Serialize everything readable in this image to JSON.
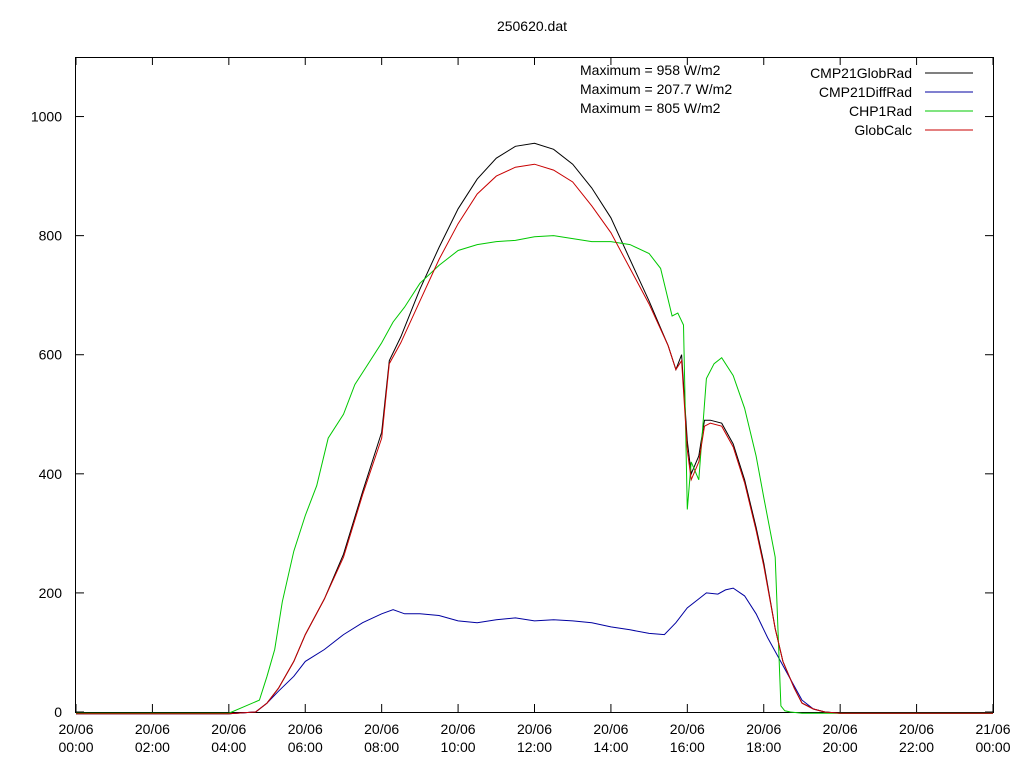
{
  "chart_data": {
    "type": "line",
    "title": "250620.dat",
    "xlabel": "",
    "ylabel": "",
    "xlim": [
      0,
      24
    ],
    "ylim": [
      0,
      1100
    ],
    "grid": false,
    "legend": "top-right",
    "x_ticks": [
      {
        "value": 0,
        "date": "20/06",
        "time": "00:00"
      },
      {
        "value": 2,
        "date": "20/06",
        "time": "02:00"
      },
      {
        "value": 4,
        "date": "20/06",
        "time": "04:00"
      },
      {
        "value": 6,
        "date": "20/06",
        "time": "06:00"
      },
      {
        "value": 8,
        "date": "20/06",
        "time": "08:00"
      },
      {
        "value": 10,
        "date": "20/06",
        "time": "10:00"
      },
      {
        "value": 12,
        "date": "20/06",
        "time": "12:00"
      },
      {
        "value": 14,
        "date": "20/06",
        "time": "14:00"
      },
      {
        "value": 16,
        "date": "20/06",
        "time": "16:00"
      },
      {
        "value": 18,
        "date": "20/06",
        "time": "18:00"
      },
      {
        "value": 20,
        "date": "20/06",
        "time": "20:00"
      },
      {
        "value": 22,
        "date": "20/06",
        "time": "22:00"
      },
      {
        "value": 24,
        "date": "21/06",
        "time": "00:00"
      }
    ],
    "y_ticks": [
      0,
      200,
      400,
      600,
      800,
      1000
    ],
    "annotations": [
      "Maximum = 958 W/m2",
      "Maximum = 207.7 W/m2",
      "Maximum = 805 W/m2"
    ],
    "series": [
      {
        "name": "CMP21GlobRad",
        "color": "#000000",
        "x": [
          0,
          2,
          4,
          4.7,
          5.0,
          5.3,
          5.7,
          6.0,
          6.5,
          7.0,
          7.5,
          8.0,
          8.2,
          8.5,
          9.0,
          9.5,
          10.0,
          10.5,
          11.0,
          11.5,
          12.0,
          12.5,
          13.0,
          13.5,
          14.0,
          14.5,
          15.0,
          15.5,
          15.7,
          15.85,
          16.0,
          16.1,
          16.3,
          16.45,
          16.6,
          16.9,
          17.2,
          17.5,
          17.8,
          18.0,
          18.3,
          18.5,
          18.8,
          19.0,
          19.3,
          19.6,
          20,
          22,
          24
        ],
        "y": [
          -3,
          -3,
          -3,
          0,
          15,
          40,
          85,
          130,
          190,
          265,
          370,
          470,
          590,
          630,
          710,
          780,
          845,
          895,
          930,
          950,
          955,
          945,
          920,
          880,
          830,
          760,
          690,
          615,
          575,
          600,
          455,
          400,
          430,
          490,
          490,
          485,
          450,
          390,
          310,
          250,
          140,
          85,
          40,
          15,
          5,
          0,
          -2,
          -2,
          -2
        ]
      },
      {
        "name": "CMP21DiffRad",
        "color": "#0000a0",
        "x": [
          0,
          2,
          4,
          4.7,
          5.0,
          5.3,
          5.7,
          6.0,
          6.5,
          7.0,
          7.5,
          8.0,
          8.3,
          8.6,
          9.0,
          9.5,
          10.0,
          10.5,
          11.0,
          11.5,
          12.0,
          12.5,
          13.0,
          13.5,
          14.0,
          14.5,
          15.0,
          15.4,
          15.7,
          16.0,
          16.3,
          16.5,
          16.8,
          17.0,
          17.2,
          17.5,
          17.8,
          18.1,
          18.4,
          18.7,
          19.0,
          19.3,
          19.6,
          20,
          22,
          24
        ],
        "y": [
          -3,
          -3,
          -3,
          0,
          15,
          35,
          60,
          85,
          105,
          130,
          150,
          165,
          172,
          165,
          165,
          162,
          153,
          150,
          155,
          158,
          153,
          155,
          153,
          150,
          143,
          138,
          132,
          130,
          150,
          175,
          190,
          200,
          198,
          205,
          208,
          195,
          165,
          125,
          90,
          55,
          20,
          5,
          0,
          -2,
          -2,
          -2
        ]
      },
      {
        "name": "CHP1Rad",
        "color": "#00c800",
        "x": [
          0,
          2,
          4,
          4.8,
          5.0,
          5.2,
          5.4,
          5.7,
          6.0,
          6.3,
          6.6,
          7.0,
          7.3,
          7.6,
          8.0,
          8.3,
          8.6,
          9.0,
          9.5,
          10.0,
          10.5,
          11.0,
          11.5,
          12.0,
          12.5,
          13.0,
          13.5,
          14.0,
          14.5,
          15.0,
          15.3,
          15.6,
          15.75,
          15.9,
          16.0,
          16.1,
          16.3,
          16.5,
          16.7,
          16.9,
          17.2,
          17.5,
          17.8,
          18.0,
          18.3,
          18.45,
          18.55,
          18.7,
          19.0,
          20,
          22,
          24
        ],
        "y": [
          -2,
          -2,
          -2,
          20,
          60,
          105,
          185,
          270,
          330,
          380,
          460,
          500,
          550,
          580,
          620,
          655,
          680,
          720,
          750,
          775,
          785,
          790,
          792,
          798,
          800,
          795,
          790,
          790,
          785,
          770,
          745,
          665,
          670,
          650,
          340,
          420,
          390,
          560,
          585,
          595,
          565,
          510,
          430,
          360,
          260,
          10,
          2,
          0,
          -2,
          -2,
          -2,
          -2
        ]
      },
      {
        "name": "GlobCalc",
        "color": "#c80000",
        "x": [
          0,
          2,
          4,
          4.7,
          5.0,
          5.3,
          5.7,
          6.0,
          6.5,
          7.0,
          7.5,
          8.0,
          8.2,
          8.5,
          9.0,
          9.5,
          10.0,
          10.5,
          11.0,
          11.5,
          12.0,
          12.5,
          13.0,
          13.5,
          14.0,
          14.5,
          15.0,
          15.5,
          15.7,
          15.85,
          16.0,
          16.1,
          16.3,
          16.45,
          16.6,
          16.9,
          17.2,
          17.5,
          17.8,
          18.0,
          18.3,
          18.5,
          18.8,
          19.0,
          19.3,
          19.6,
          20,
          22,
          24
        ],
        "y": [
          -3,
          -3,
          -3,
          0,
          15,
          40,
          85,
          130,
          190,
          260,
          365,
          460,
          585,
          620,
          690,
          760,
          820,
          870,
          900,
          915,
          920,
          910,
          890,
          850,
          805,
          745,
          685,
          615,
          575,
          590,
          440,
          390,
          420,
          480,
          485,
          480,
          445,
          385,
          305,
          245,
          140,
          85,
          40,
          15,
          5,
          0,
          -2,
          -2,
          -2
        ]
      }
    ]
  }
}
